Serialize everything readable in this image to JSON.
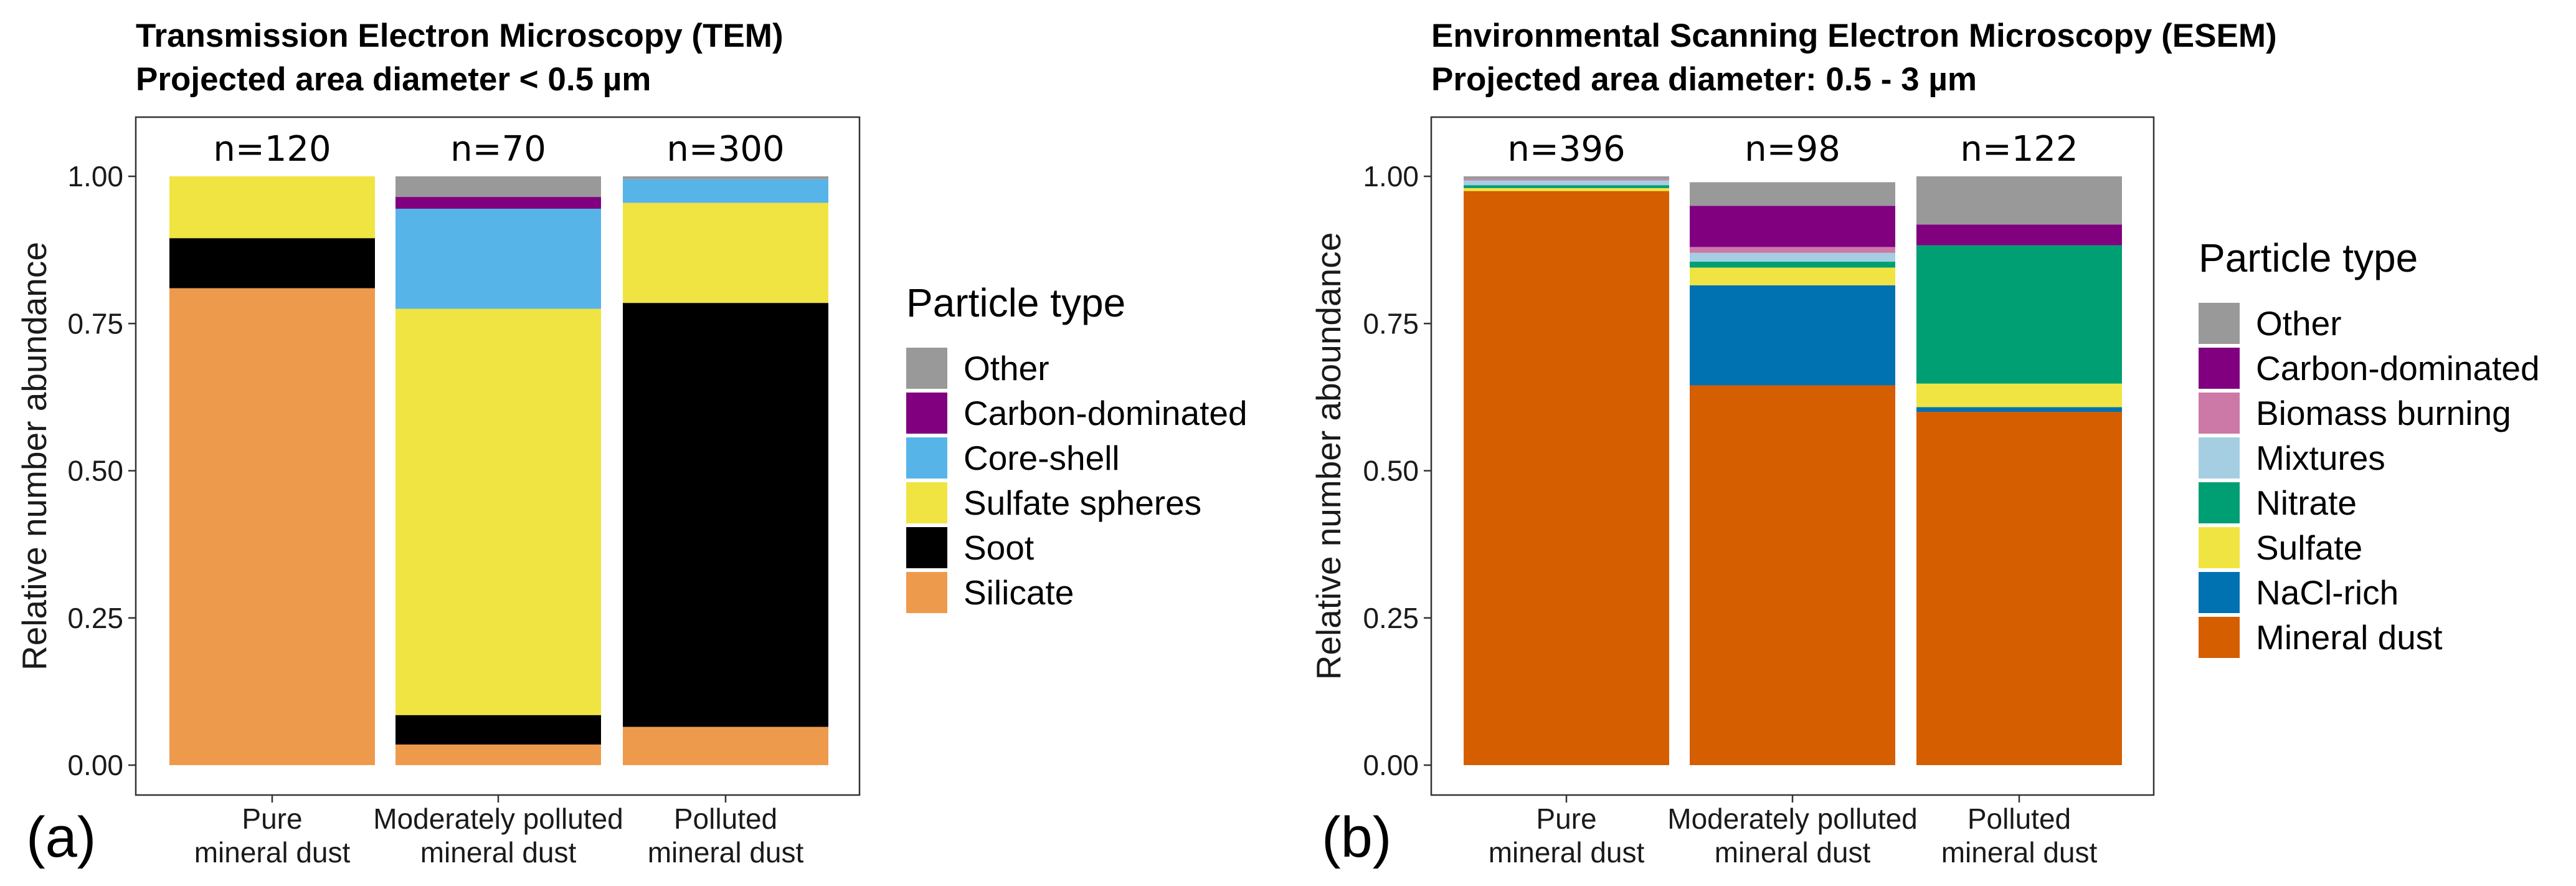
{
  "chart_data": [
    {
      "type": "bar",
      "stacked": true,
      "panel_label": "(a)",
      "title_lines": [
        "Transmission Electron Microscopy (TEM)",
        "Projected area diameter < 0.5 µm"
      ],
      "ylabel": "Relative number abundance",
      "ylim": [
        0,
        1.0
      ],
      "yticks": [
        "0.00",
        "0.25",
        "0.50",
        "0.75",
        "1.00"
      ],
      "grid": false,
      "categories": [
        [
          "Pure",
          "mineral dust"
        ],
        [
          "Moderately polluted",
          "mineral dust"
        ],
        [
          "Polluted",
          "mineral dust"
        ]
      ],
      "sample_sizes": [
        "n=120",
        "n=70",
        "n=300"
      ],
      "legend_title": "Particle type",
      "legend_position": "right",
      "series": [
        {
          "name": "Silicate",
          "color": "#EE9A4D",
          "values": [
            0.81,
            0.035,
            0.065
          ]
        },
        {
          "name": "Soot",
          "color": "#000000",
          "values": [
            0.085,
            0.05,
            0.72
          ]
        },
        {
          "name": "Sulfate spheres",
          "color": "#F0E442",
          "values": [
            0.105,
            0.69,
            0.17
          ]
        },
        {
          "name": "Core-shell",
          "color": "#56B4E9",
          "values": [
            0.0,
            0.17,
            0.04
          ]
        },
        {
          "name": "Carbon-dominated",
          "color": "#800080",
          "values": [
            0.0,
            0.02,
            0.0
          ]
        },
        {
          "name": "Other",
          "color": "#999999",
          "values": [
            0.0,
            0.035,
            0.005
          ]
        }
      ]
    },
    {
      "type": "bar",
      "stacked": true,
      "panel_label": "(b)",
      "title_lines": [
        "Environmental Scanning Electron Microscopy (ESEM)",
        "Projected area diameter: 0.5 - 3 µm"
      ],
      "ylabel": "Relative number aboundance",
      "ylim": [
        0,
        1.0
      ],
      "yticks": [
        "0.00",
        "0.25",
        "0.50",
        "0.75",
        "1.00"
      ],
      "grid": false,
      "categories": [
        [
          "Pure",
          "mineral dust"
        ],
        [
          "Moderately polluted",
          "mineral dust"
        ],
        [
          "Polluted",
          "mineral dust"
        ]
      ],
      "sample_sizes": [
        "n=396",
        "n=98",
        "n=122"
      ],
      "legend_title": "Particle type",
      "legend_position": "right",
      "series": [
        {
          "name": "Mineral dust",
          "color": "#D55E00",
          "values": [
            0.975,
            0.645,
            0.6
          ]
        },
        {
          "name": "NaCl-rich",
          "color": "#0072B2",
          "values": [
            0.0,
            0.17,
            0.008
          ]
        },
        {
          "name": "Sulfate",
          "color": "#F0E442",
          "values": [
            0.005,
            0.03,
            0.04
          ]
        },
        {
          "name": "Nitrate",
          "color": "#009E73",
          "values": [
            0.005,
            0.01,
            0.235
          ]
        },
        {
          "name": "Mixtures",
          "color": "#A6CEE3",
          "values": [
            0.008,
            0.015,
            0.0
          ]
        },
        {
          "name": "Biomass burning",
          "color": "#CC79A7",
          "values": [
            0.002,
            0.01,
            0.0
          ]
        },
        {
          "name": "Carbon-dominated",
          "color": "#800080",
          "values": [
            0.0,
            0.07,
            0.035
          ]
        },
        {
          "name": "Other",
          "color": "#999999",
          "values": [
            0.005,
            0.04,
            0.082
          ]
        }
      ]
    }
  ]
}
